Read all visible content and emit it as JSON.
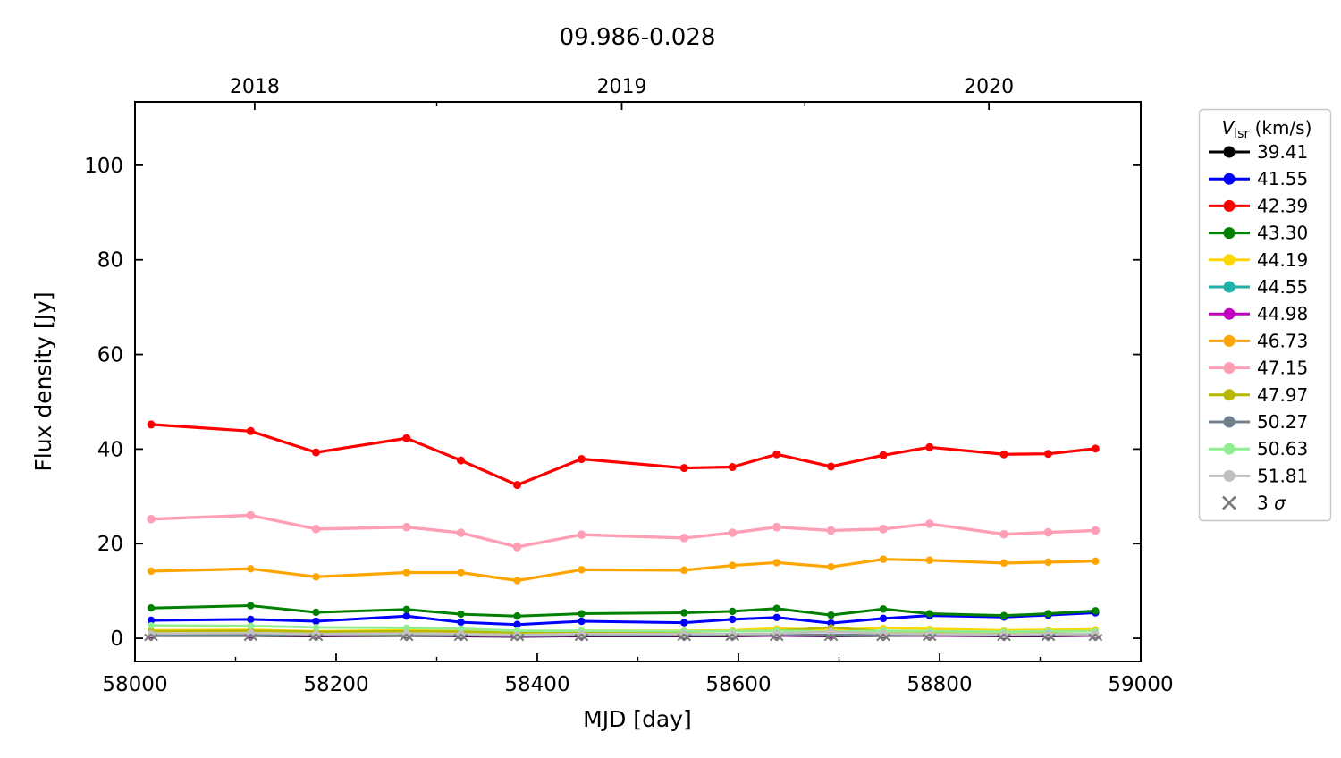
{
  "chart_data": {
    "type": "line",
    "title": "09.986-0.028",
    "xlabel": "MJD [day]",
    "ylabel": "Flux density [Jy]",
    "xlim": [
      58000,
      59000
    ],
    "ylim": [
      -4.9,
      113.4
    ],
    "x_major_ticks": [
      58000,
      58200,
      58400,
      58600,
      58800,
      59000
    ],
    "x_minor_ticks": [
      58100,
      58300,
      58500,
      58700,
      58900
    ],
    "y_major_ticks": [
      0,
      20,
      40,
      60,
      80,
      100
    ],
    "top_axis": {
      "year_ticks": [
        {
          "label": "2018",
          "mjd": 58119
        },
        {
          "label": "2019",
          "mjd": 58484
        },
        {
          "label": "2020",
          "mjd": 58849
        }
      ],
      "minor_mjd": [
        58300,
        58666
      ]
    },
    "legend": {
      "title_v": "V",
      "title_sub": "lsr",
      "title_units": " (km/s)",
      "sigma_prefix": "3 ",
      "sigma_symbol": "σ"
    },
    "x_mjd": [
      58016,
      58115,
      58180,
      58270,
      58324,
      58380,
      58444,
      58546,
      58594,
      58638,
      58692,
      58744,
      58790,
      58864,
      58908,
      58955
    ],
    "series": [
      {
        "label": "39.41",
        "color": "#000000",
        "lw": 2,
        "ms": 3,
        "values": [
          0.5,
          0.5,
          0.4,
          0.5,
          0.4,
          0.3,
          0.4,
          0.4,
          0.4,
          0.5,
          0.4,
          0.5,
          0.5,
          0.4,
          0.4,
          0.5
        ]
      },
      {
        "label": "41.55",
        "color": "#0000ff",
        "lw": 3,
        "ms": 4.2,
        "values": [
          3.8,
          4.0,
          3.6,
          4.7,
          3.4,
          2.9,
          3.6,
          3.3,
          4.0,
          4.4,
          3.2,
          4.2,
          4.8,
          4.5,
          4.9,
          5.4
        ]
      },
      {
        "label": "42.39",
        "color": "#ff0000",
        "lw": 3.2,
        "ms": 4.5,
        "values": [
          45.2,
          43.8,
          39.3,
          42.3,
          37.6,
          32.4,
          37.9,
          36.0,
          36.2,
          38.9,
          36.3,
          38.7,
          40.4,
          38.9,
          39.0,
          40.1
        ]
      },
      {
        "label": "43.30",
        "color": "#008000",
        "lw": 3,
        "ms": 4.2,
        "values": [
          6.4,
          6.9,
          5.5,
          6.1,
          5.1,
          4.7,
          5.2,
          5.4,
          5.7,
          6.3,
          4.9,
          6.2,
          5.2,
          4.8,
          5.2,
          5.8
        ]
      },
      {
        "label": "44.19",
        "color": "#ffd700",
        "lw": 2.6,
        "ms": 3.6,
        "values": [
          1.7,
          1.8,
          1.5,
          1.7,
          1.6,
          1.3,
          1.6,
          1.6,
          1.7,
          2.1,
          1.7,
          2.2,
          2.0,
          1.7,
          1.8,
          1.9
        ]
      },
      {
        "label": "44.55",
        "color": "#20b2aa",
        "lw": 2,
        "ms": 3,
        "values": [
          0.7,
          0.7,
          0.6,
          0.6,
          0.5,
          0.4,
          0.5,
          0.5,
          0.5,
          0.6,
          0.5,
          0.6,
          0.6,
          0.5,
          0.5,
          0.6
        ]
      },
      {
        "label": "44.98",
        "color": "#bf00bf",
        "lw": 2,
        "ms": 3,
        "values": [
          0.6,
          0.6,
          0.5,
          0.6,
          0.5,
          0.4,
          0.5,
          0.5,
          0.5,
          0.5,
          0.5,
          0.6,
          0.5,
          0.5,
          0.5,
          0.5
        ]
      },
      {
        "label": "46.73",
        "color": "#ffa500",
        "lw": 3.2,
        "ms": 4.2,
        "values": [
          14.2,
          14.7,
          13.0,
          13.9,
          13.9,
          12.2,
          14.5,
          14.4,
          15.4,
          16.0,
          15.1,
          16.7,
          16.5,
          15.9,
          16.1,
          16.3
        ]
      },
      {
        "label": "47.15",
        "color": "#ff9fb5",
        "lw": 3.4,
        "ms": 4.8,
        "values": [
          25.2,
          26.0,
          23.1,
          23.5,
          22.3,
          19.3,
          21.9,
          21.2,
          22.3,
          23.5,
          22.8,
          23.1,
          24.2,
          22.0,
          22.4,
          22.8
        ]
      },
      {
        "label": "47.97",
        "color": "#b8b800",
        "lw": 2.6,
        "ms": 3.6,
        "values": [
          1.5,
          1.6,
          1.4,
          1.5,
          1.4,
          1.2,
          1.4,
          1.4,
          1.5,
          1.6,
          2.3,
          1.5,
          1.4,
          1.3,
          1.4,
          1.5
        ]
      },
      {
        "label": "50.27",
        "color": "#708090",
        "lw": 2.2,
        "ms": 3.2,
        "values": [
          0.8,
          0.8,
          0.7,
          0.7,
          0.6,
          0.5,
          0.6,
          0.6,
          0.6,
          0.7,
          0.8,
          0.7,
          0.7,
          0.6,
          0.7,
          0.7
        ]
      },
      {
        "label": "50.63",
        "color": "#90ee90",
        "lw": 2.8,
        "ms": 3.8,
        "values": [
          2.7,
          2.6,
          2.3,
          2.2,
          2.0,
          1.6,
          1.6,
          1.5,
          1.5,
          1.6,
          1.4,
          1.6,
          1.5,
          1.4,
          1.5,
          1.5
        ]
      },
      {
        "label": "51.81",
        "color": "#c0c0c0",
        "lw": 2.6,
        "ms": 4.2,
        "values": [
          1.0,
          1.1,
          0.9,
          1.0,
          0.9,
          0.7,
          0.9,
          0.9,
          0.9,
          1.0,
          1.4,
          1.0,
          0.9,
          0.8,
          0.9,
          0.9
        ]
      }
    ],
    "sigma_markers": {
      "label": "3 σ",
      "color": "#787878",
      "value": 0.2,
      "values": [
        0.2,
        0.2,
        0.2,
        0.2,
        0.2,
        0.2,
        0.2,
        0.2,
        0.2,
        0.2,
        0.2,
        0.2,
        0.2,
        0.2,
        0.2,
        0.2
      ]
    }
  }
}
